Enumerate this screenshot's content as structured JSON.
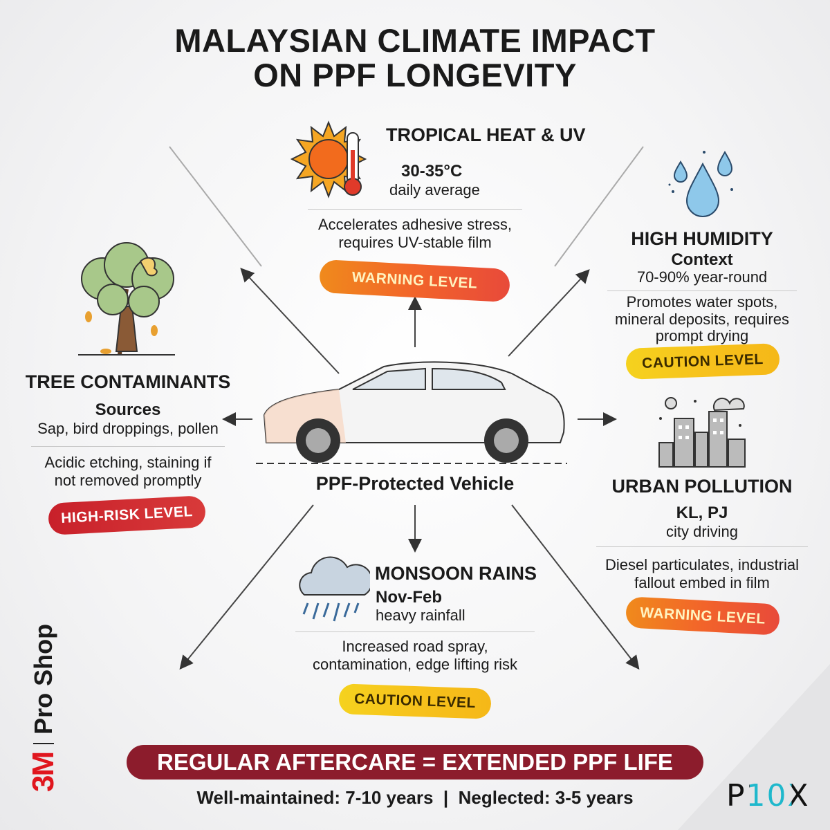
{
  "title_line1": "MALAYSIAN CLIMATE IMPACT",
  "title_line2": "ON PPF LONGEVITY",
  "heat": {
    "title": "TROPICAL HEAT & UV",
    "value": "30-35°C",
    "sub": "daily average",
    "desc1": "Accelerates adhesive stress,",
    "desc2": "requires UV-stable film",
    "level": "WARNING LEVEL",
    "icon": "sun-thermometer-icon"
  },
  "humidity": {
    "title": "HIGH HUMIDITY",
    "label": "Context",
    "value": "70-90% year-round",
    "desc1": "Promotes water spots,",
    "desc2": "mineral deposits, requires",
    "desc3": "prompt drying",
    "level": "CAUTION LEVEL",
    "icon": "water-drops-icon"
  },
  "tree": {
    "title": "TREE CONTAMINANTS",
    "label": "Sources",
    "value": "Sap, bird droppings, pollen",
    "desc1": "Acidic etching, staining if",
    "desc2": "not removed promptly",
    "level": "HIGH-RISK LEVEL",
    "icon": "tree-sap-icon"
  },
  "urban": {
    "title": "URBAN POLLUTION",
    "value": "KL, PJ",
    "sub": "city driving",
    "desc1": "Diesel particulates, industrial",
    "desc2": "fallout embed in film",
    "level": "WARNING LEVEL",
    "icon": "city-smog-icon"
  },
  "monsoon": {
    "title": "MONSOON RAINS",
    "value": "Nov-Feb",
    "sub": "heavy rainfall",
    "desc1": "Increased road spray,",
    "desc2": "contamination, edge lifting risk",
    "level": "CAUTION LEVEL",
    "icon": "rain-cloud-icon"
  },
  "vehicle_label": "PPF-Protected Vehicle",
  "banner": "REGULAR AFTERCARE = EXTENDED PPF LIFE",
  "footer": "Well-maintained: 7-10 years  |  Neglected: 3-5 years",
  "brand_left": {
    "logo": "3M",
    "text": "Pro Shop"
  },
  "brand_right": "P10X",
  "colors": {
    "warning": "#f2642a",
    "caution": "#f7c21c",
    "high_risk": "#c8202a",
    "banner": "#8c1c2c",
    "logo_accent": "#1fb8cc"
  }
}
